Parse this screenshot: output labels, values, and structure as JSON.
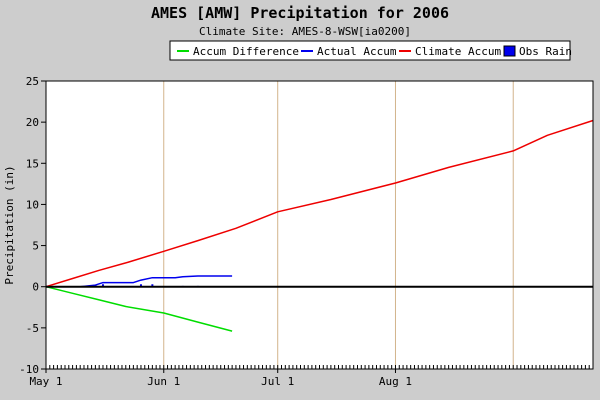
{
  "chart_data": {
    "type": "line",
    "title": "AMES [AMW] Precipitation for 2006",
    "subtitle": "Climate Site: AMES-8-WSW[ia0200]",
    "xlabel": "",
    "ylabel": "Precipitation (in)",
    "x_domain": [
      "2006-05-01",
      "2006-09-22"
    ],
    "ylim": [
      -10,
      25
    ],
    "y_ticks": [
      -10,
      -5,
      0,
      5,
      10,
      15,
      20,
      25
    ],
    "x_ticks": [
      {
        "date": "2006-05-01",
        "label": "May 1"
      },
      {
        "date": "2006-06-01",
        "label": "Jun 1"
      },
      {
        "date": "2006-07-01",
        "label": "Jul 1"
      },
      {
        "date": "2006-08-01",
        "label": "Aug 1"
      }
    ],
    "vertical_gridlines": [
      "2006-06-01",
      "2006-07-01",
      "2006-08-01",
      "2006-09-01"
    ],
    "zero_line": true,
    "legend": {
      "placement": "top",
      "items": [
        {
          "name": "Accum Difference",
          "color": "#00dd00",
          "marker": "line"
        },
        {
          "name": "Actual Accum",
          "color": "#0000ee",
          "marker": "line"
        },
        {
          "name": "Climate Accum",
          "color": "#ee0000",
          "marker": "line"
        },
        {
          "name": "Obs Rain",
          "color": "#0000ee",
          "marker": "box"
        }
      ]
    },
    "series": [
      {
        "name": "Climate Accum",
        "color": "#ee0000",
        "points": [
          [
            "2006-05-01",
            0.0
          ],
          [
            "2006-05-08",
            1.0
          ],
          [
            "2006-05-15",
            2.0
          ],
          [
            "2006-05-22",
            2.9
          ],
          [
            "2006-06-01",
            4.3
          ],
          [
            "2006-06-10",
            5.6
          ],
          [
            "2006-06-20",
            7.1
          ],
          [
            "2006-07-01",
            9.1
          ],
          [
            "2006-07-15",
            10.6
          ],
          [
            "2006-08-01",
            12.6
          ],
          [
            "2006-08-15",
            14.5
          ],
          [
            "2006-09-01",
            16.5
          ],
          [
            "2006-09-10",
            18.4
          ],
          [
            "2006-09-22",
            20.2
          ]
        ]
      },
      {
        "name": "Actual Accum",
        "color": "#0000ee",
        "points": [
          [
            "2006-05-01",
            0.0
          ],
          [
            "2006-05-10",
            0.0
          ],
          [
            "2006-05-14",
            0.2
          ],
          [
            "2006-05-16",
            0.5
          ],
          [
            "2006-05-24",
            0.5
          ],
          [
            "2006-05-26",
            0.8
          ],
          [
            "2006-05-29",
            1.1
          ],
          [
            "2006-06-04",
            1.1
          ],
          [
            "2006-06-06",
            1.2
          ],
          [
            "2006-06-10",
            1.3
          ],
          [
            "2006-06-19",
            1.3
          ]
        ]
      },
      {
        "name": "Accum Difference",
        "color": "#00dd00",
        "points": [
          [
            "2006-05-01",
            0.0
          ],
          [
            "2006-05-08",
            -0.8
          ],
          [
            "2006-05-15",
            -1.6
          ],
          [
            "2006-05-22",
            -2.4
          ],
          [
            "2006-06-01",
            -3.2
          ],
          [
            "2006-06-10",
            -4.3
          ],
          [
            "2006-06-19",
            -5.4
          ]
        ]
      }
    ],
    "obs_rain": {
      "name": "Obs Rain",
      "color": "#0000ee",
      "bars": [
        [
          "2006-05-10",
          0.05
        ],
        [
          "2006-05-14",
          0.2
        ],
        [
          "2006-05-16",
          0.3
        ],
        [
          "2006-05-26",
          0.3
        ],
        [
          "2006-05-29",
          0.3
        ],
        [
          "2006-06-06",
          0.1
        ],
        [
          "2006-06-10",
          0.1
        ],
        [
          "2006-06-15",
          0.05
        ]
      ]
    }
  }
}
